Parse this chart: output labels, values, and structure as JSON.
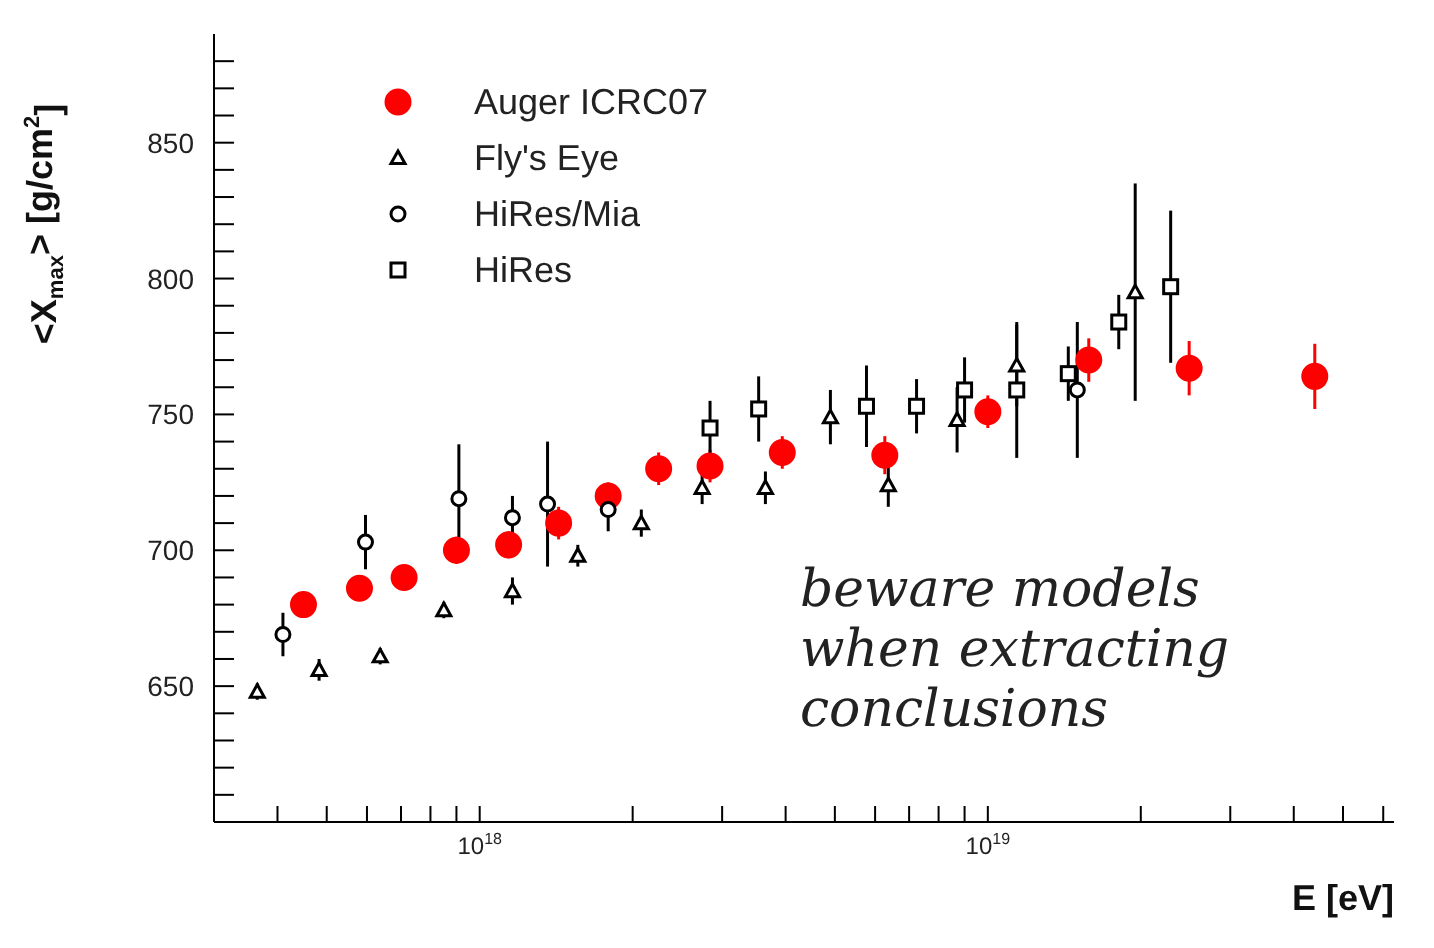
{
  "chart_data": {
    "type": "scatter",
    "xlabel": "E [eV]",
    "ylabel": "<X$_{max}$> [g/cm$^{2}$]",
    "log": "x",
    "xlim": [
      3e+17,
      6.3e+19
    ],
    "ylim": [
      600,
      890
    ],
    "xticks": [
      {
        "value": 4e+17,
        "label": null
      },
      {
        "value": 5e+17,
        "label": null
      },
      {
        "value": 6e+17,
        "label": null
      },
      {
        "value": 7e+17,
        "label": null
      },
      {
        "value": 8e+17,
        "label": null
      },
      {
        "value": 9e+17,
        "label": null
      },
      {
        "value": 1e+18,
        "label": "10$^{18}$"
      },
      {
        "value": 2e+18,
        "label": null
      },
      {
        "value": 3e+18,
        "label": null
      },
      {
        "value": 4e+18,
        "label": null
      },
      {
        "value": 5e+18,
        "label": null
      },
      {
        "value": 6e+18,
        "label": null
      },
      {
        "value": 7e+18,
        "label": null
      },
      {
        "value": 8e+18,
        "label": null
      },
      {
        "value": 9e+18,
        "label": null
      },
      {
        "value": 1e+19,
        "label": "10$^{19}$"
      },
      {
        "value": 2e+19,
        "label": null
      },
      {
        "value": 3e+19,
        "label": null
      },
      {
        "value": 4e+19,
        "label": null
      },
      {
        "value": 5e+19,
        "label": null
      },
      {
        "value": 6e+19,
        "label": null
      }
    ],
    "yticks": [
      {
        "value": 610,
        "label": null
      },
      {
        "value": 620,
        "label": null
      },
      {
        "value": 630,
        "label": null
      },
      {
        "value": 640,
        "label": null
      },
      650,
      {
        "value": 660,
        "label": null
      },
      {
        "value": 670,
        "label": null
      },
      {
        "value": 680,
        "label": null
      },
      {
        "value": 690,
        "label": null
      },
      700,
      {
        "value": 710,
        "label": null
      },
      {
        "value": 720,
        "label": null
      },
      {
        "value": 730,
        "label": null
      },
      {
        "value": 740,
        "label": null
      },
      750,
      {
        "value": 760,
        "label": null
      },
      {
        "value": 770,
        "label": null
      },
      {
        "value": 780,
        "label": null
      },
      {
        "value": 790,
        "label": null
      },
      800,
      {
        "value": 810,
        "label": null
      },
      {
        "value": 820,
        "label": null
      },
      {
        "value": 830,
        "label": null
      },
      {
        "value": 840,
        "label": null
      },
      850,
      {
        "value": 860,
        "label": null
      },
      {
        "value": 870,
        "label": null
      },
      {
        "value": 880,
        "label": null
      }
    ],
    "legend": "top left",
    "series": [
      {
        "name": "Auger ICRC07",
        "color": "#ff0000",
        "marker": "circle",
        "x": [
          4.5e+17,
          5.8e+17,
          7.1e+17,
          9e+17,
          1.14e+18,
          1.43e+18,
          1.79e+18,
          2.25e+18,
          2.84e+18,
          3.94e+18,
          6.27e+18,
          1e+19,
          1.58e+19,
          2.49e+19,
          4.4e+19
        ],
        "values": [
          680,
          686,
          690,
          700,
          702,
          710,
          720,
          730,
          731,
          736,
          735,
          751,
          770,
          767,
          764
        ],
        "errors": [
          4,
          4,
          4,
          5,
          5,
          6,
          5,
          6,
          6,
          6,
          7,
          6,
          8,
          10,
          12
        ]
      },
      {
        "name": "Fly's Eye",
        "color": "#000000",
        "marker": "triangle",
        "x": [
          3.65e+17,
          4.83e+17,
          6.37e+17,
          8.5e+17,
          1.16e+18,
          1.56e+18,
          2.08e+18,
          2.74e+18,
          3.65e+18,
          4.9e+18,
          6.37e+18,
          8.7e+18,
          1.14e+19,
          1.95e+19
        ],
        "values": [
          648,
          656,
          661,
          678,
          685,
          698,
          710,
          723,
          723,
          749,
          724,
          748,
          768,
          795
        ],
        "errors": [
          3,
          4,
          3,
          3,
          5,
          4,
          5,
          6,
          6,
          10,
          8,
          12,
          15,
          40
        ]
      },
      {
        "name": "HiRes/Mia",
        "color": "#000000",
        "marker": "circle",
        "x": [
          4.1e+17,
          5.96e+17,
          9.1e+17,
          1.16e+18,
          1.36e+18,
          1.79e+18,
          1.5e+19
        ],
        "values": [
          669,
          703,
          719,
          712,
          717,
          715,
          759
        ],
        "errors": [
          8,
          10,
          20,
          8,
          23,
          8,
          25
        ]
      },
      {
        "name": "HiRes",
        "color": "#000000",
        "marker": "square",
        "x": [
          2.84e+18,
          3.54e+18,
          5.77e+18,
          7.24e+18,
          9e+18,
          1.14e+19,
          1.44e+19,
          1.81e+19,
          2.29e+19
        ],
        "values": [
          745,
          752,
          753,
          753,
          759,
          759,
          765,
          784,
          797
        ],
        "errors": [
          10,
          12,
          15,
          10,
          12,
          25,
          10,
          10,
          28
        ]
      }
    ],
    "annotations": [
      "beware models when extracting conclusions"
    ]
  }
}
